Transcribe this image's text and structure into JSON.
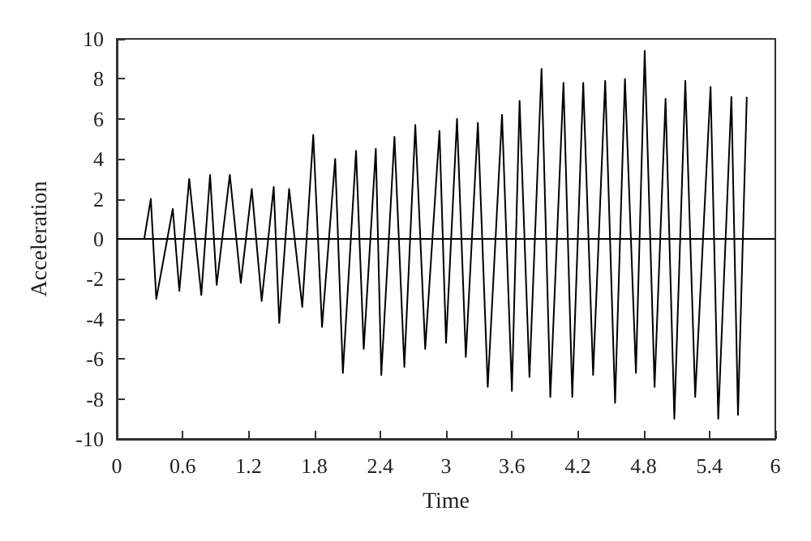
{
  "chart_data": {
    "type": "line",
    "xlabel": "Time",
    "ylabel": "Acceleration",
    "x": [
      0.25,
      0.31,
      0.36,
      0.51,
      0.57,
      0.66,
      0.77,
      0.85,
      0.91,
      1.03,
      1.13,
      1.23,
      1.32,
      1.43,
      1.48,
      1.57,
      1.69,
      1.79,
      1.87,
      1.99,
      2.06,
      2.18,
      2.25,
      2.36,
      2.41,
      2.53,
      2.62,
      2.72,
      2.81,
      2.94,
      3.0,
      3.1,
      3.18,
      3.29,
      3.38,
      3.51,
      3.6,
      3.67,
      3.76,
      3.87,
      3.95,
      4.07,
      4.15,
      4.25,
      4.34,
      4.45,
      4.54,
      4.63,
      4.73,
      4.81,
      4.9,
      5.0,
      5.08,
      5.18,
      5.27,
      5.41,
      5.48,
      5.6,
      5.66,
      5.74
    ],
    "series": [
      {
        "color": "#000000",
        "values": [
          0,
          2.0,
          -3.0,
          1.5,
          -2.6,
          3.0,
          -2.8,
          3.2,
          -2.3,
          3.2,
          -2.2,
          2.5,
          -3.1,
          2.6,
          -4.2,
          2.5,
          -3.4,
          5.2,
          -4.4,
          4.0,
          -6.7,
          4.4,
          -5.5,
          4.5,
          -6.8,
          5.1,
          -6.4,
          5.7,
          -5.5,
          5.4,
          -5.2,
          6.0,
          -5.9,
          5.8,
          -7.4,
          6.2,
          -7.6,
          6.9,
          -6.9,
          8.5,
          -7.9,
          7.8,
          -7.9,
          7.8,
          -6.8,
          7.9,
          -8.2,
          8.0,
          -6.7,
          9.4,
          -7.4,
          7.0,
          -9.0,
          7.9,
          -7.9,
          7.6,
          -9.0,
          7.1,
          -8.8,
          7.1
        ]
      }
    ],
    "xlim": [
      0,
      6
    ],
    "xticks": [
      0,
      0.6,
      1.2,
      1.8,
      2.4,
      3,
      3.6,
      4.2,
      4.8,
      5.4,
      6
    ],
    "ylim": [
      -10,
      10
    ],
    "yticks": [
      -10,
      -8,
      -6,
      -4,
      -2,
      0,
      2,
      4,
      6,
      8,
      10
    ],
    "ref_lines": [
      {
        "axis": "y",
        "value": 0,
        "color": "#000000"
      }
    ],
    "grid": false,
    "marker": "none",
    "line_style": "solid"
  }
}
